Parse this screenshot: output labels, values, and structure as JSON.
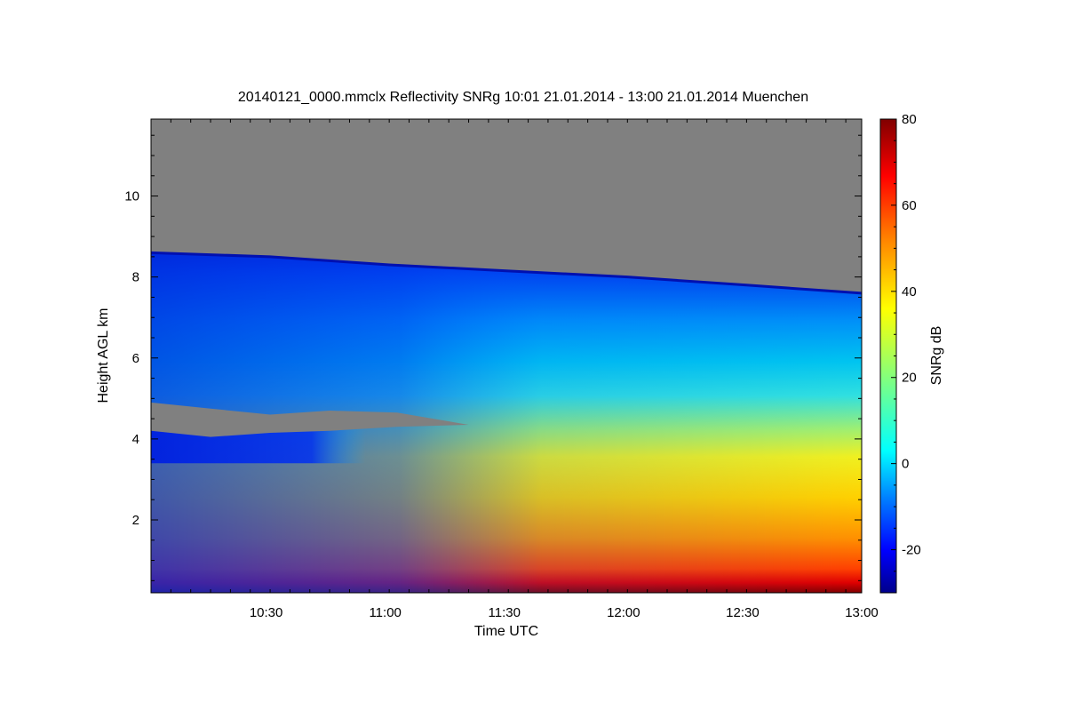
{
  "chart_data": {
    "type": "heatmap",
    "title": "20140121_0000.mmclx Reflectivity SNRg   10:01 21.01.2014 - 13:00 21.01.2014 Muenchen",
    "xlabel": "Time UTC",
    "ylabel": "Height AGL km",
    "colorbar_label": "SNRg dB",
    "x_range": [
      "10:01",
      "13:00"
    ],
    "y_range_km": [
      0.2,
      11.9
    ],
    "colorbar_range": [
      -30,
      80
    ],
    "x_ticks": [
      {
        "label": "10:30",
        "minutes": 29
      },
      {
        "label": "11:00",
        "minutes": 59
      },
      {
        "label": "11:30",
        "minutes": 89
      },
      {
        "label": "12:00",
        "minutes": 119
      },
      {
        "label": "12:30",
        "minutes": 149
      },
      {
        "label": "13:00",
        "minutes": 179
      }
    ],
    "y_ticks": [
      {
        "label": "2",
        "value": 2
      },
      {
        "label": "4",
        "value": 4
      },
      {
        "label": "6",
        "value": 6
      },
      {
        "label": "8",
        "value": 8
      },
      {
        "label": "10",
        "value": 10
      }
    ],
    "colorbar_ticks": [
      {
        "label": "-20",
        "value": -20
      },
      {
        "label": "0",
        "value": 0
      },
      {
        "label": "20",
        "value": 20
      },
      {
        "label": "40",
        "value": 40
      },
      {
        "label": "60",
        "value": 60
      },
      {
        "label": "80",
        "value": 80
      }
    ],
    "colormap": [
      "#00008b",
      "#0000ff",
      "#0080ff",
      "#00ffff",
      "#80ff80",
      "#ffff00",
      "#ff8000",
      "#ff0000",
      "#800000"
    ],
    "no_data_color": "#808080",
    "cloud_top_km": [
      {
        "minutes": 0,
        "value": 8.6
      },
      {
        "minutes": 30,
        "value": 8.5
      },
      {
        "minutes": 60,
        "value": 8.3
      },
      {
        "minutes": 90,
        "value": 8.15
      },
      {
        "minutes": 120,
        "value": 8.0
      },
      {
        "minutes": 150,
        "value": 7.8
      },
      {
        "minutes": 179,
        "value": 7.6
      }
    ],
    "gap_layer_km": {
      "top": [
        {
          "minutes": 0,
          "value": 4.9
        },
        {
          "minutes": 15,
          "value": 4.75
        },
        {
          "minutes": 30,
          "value": 4.6
        },
        {
          "minutes": 45,
          "value": 4.7
        },
        {
          "minutes": 62,
          "value": 4.65
        },
        {
          "minutes": 80,
          "value": 4.35
        }
      ],
      "bottom": [
        {
          "minutes": 80,
          "value": 4.35
        },
        {
          "minutes": 62,
          "value": 4.3
        },
        {
          "minutes": 45,
          "value": 4.2
        },
        {
          "minutes": 30,
          "value": 4.15
        },
        {
          "minutes": 15,
          "value": 4.05
        },
        {
          "minutes": 0,
          "value": 4.2
        }
      ]
    }
  }
}
